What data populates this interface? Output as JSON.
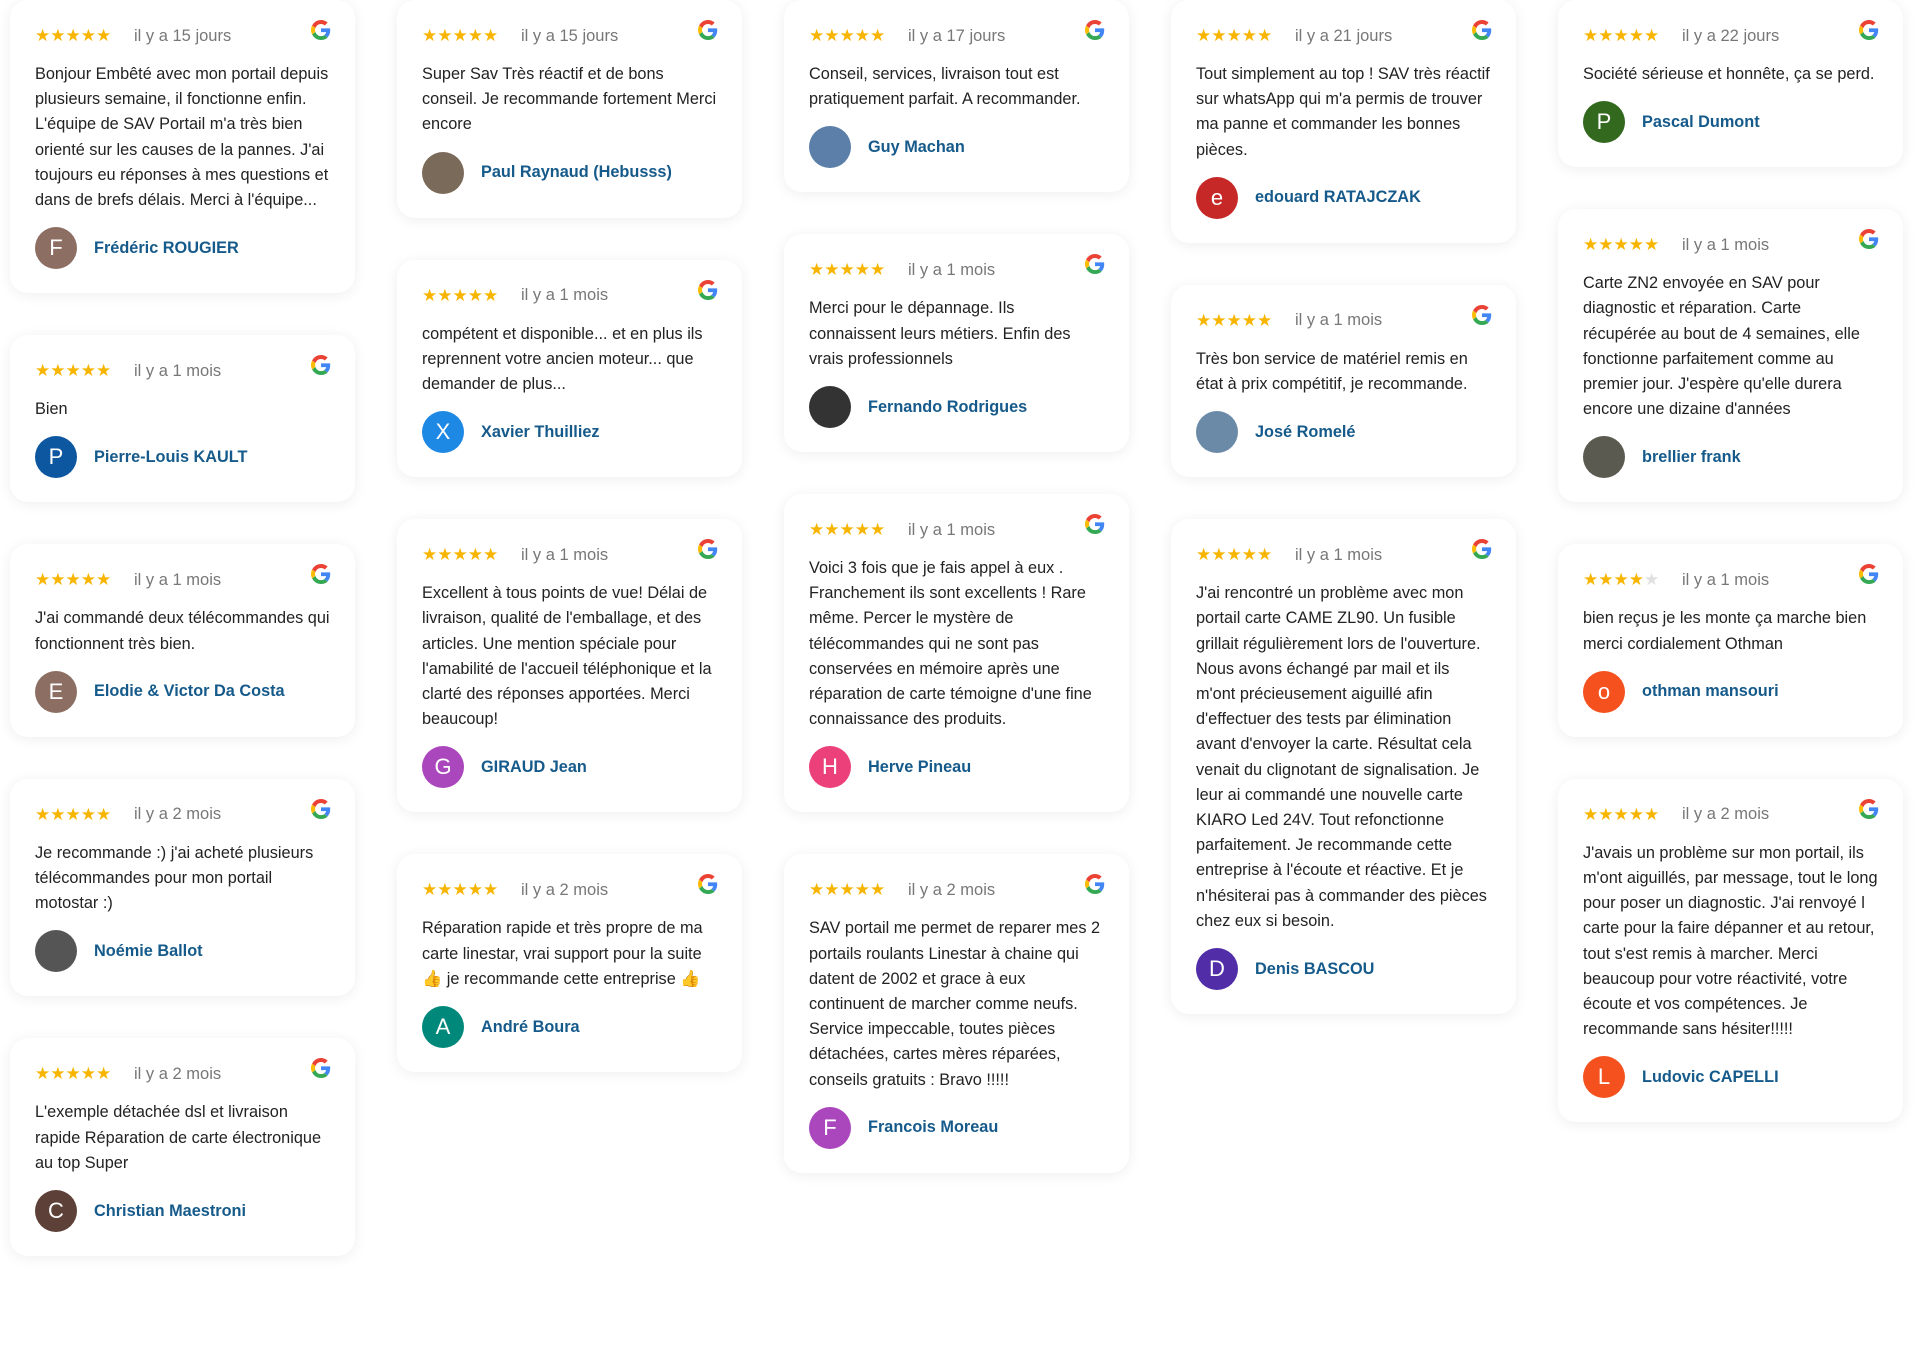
{
  "colors": {
    "star": "#f8b500",
    "name": "#155a8a"
  },
  "columns": [
    [
      {
        "stars": 5,
        "date": "il y a 15 jours",
        "text": "Bonjour Embêté avec mon portail depuis plusieurs semaine, il fonctionne enfin. L'équipe de SAV Portail m'a très bien orienté sur les causes de la pannes. J'ai toujours eu réponses à mes questions et dans de brefs délais. Merci à l'équipe...",
        "name": "Frédéric ROUGIER",
        "initial": "F",
        "color": "#8d6e63"
      },
      {
        "stars": 5,
        "date": "il y a 1 mois",
        "text": "Bien",
        "name": "Pierre-Louis KAULT",
        "initial": "P",
        "color": "#0d57a0"
      },
      {
        "stars": 5,
        "date": "il y a 1 mois",
        "text": "J'ai commandé deux télécommandes qui fonctionnent très bien.",
        "name": "Elodie & Victor Da Costa",
        "initial": "E",
        "color": "#8d6e63"
      },
      {
        "stars": 5,
        "date": "il y a 2 mois",
        "text": "Je recommande :) j'ai acheté plusieurs télécommandes pour mon portail motostar :)",
        "name": "Noémie Ballot",
        "initial": "",
        "color": "#555"
      },
      {
        "stars": 5,
        "date": "il y a 2 mois",
        "text": "L'exemple détachée dsl et livraison rapide Réparation de carte électronique au top Super",
        "name": "Christian Maestroni",
        "initial": "C",
        "color": "#5d4037"
      }
    ],
    [
      {
        "stars": 5,
        "date": "il y a 15 jours",
        "text": "Super Sav Très réactif et de bons conseil. Je recommande fortement Merci encore",
        "name": "Paul Raynaud (Hebusss)",
        "initial": "",
        "color": "#7a6a5a"
      },
      {
        "stars": 5,
        "date": "il y a 1 mois",
        "text": "compétent et disponible... et en plus ils reprennent votre ancien moteur... que demander de plus...",
        "name": "Xavier Thuilliez",
        "initial": "X",
        "color": "#1e88e5"
      },
      {
        "stars": 5,
        "date": "il y a 1 mois",
        "text": "Excellent à tous points de vue! Délai de livraison, qualité de l'emballage, et des articles. Une mention spéciale pour l'amabilité de l'accueil téléphonique et la clarté des réponses apportées. Merci beaucoup!",
        "name": "GIRAUD Jean",
        "initial": "G",
        "color": "#ab47bc"
      },
      {
        "stars": 5,
        "date": "il y a 2 mois",
        "text": "Réparation rapide et très propre de ma carte linestar, vrai support pour la suite 👍 je recommande cette entreprise 👍",
        "name": "André Boura",
        "initial": "A",
        "color": "#00897b"
      }
    ],
    [
      {
        "stars": 5,
        "date": "il y a 17 jours",
        "text": "Conseil, services, livraison tout est pratiquement parfait. A recommander.",
        "name": "Guy Machan",
        "initial": "",
        "color": "#5b7fa8"
      },
      {
        "stars": 5,
        "date": "il y a 1 mois",
        "text": "Merci pour le dépannage. Ils connaissent leurs métiers. Enfin des vrais professionnels",
        "name": "Fernando Rodrigues",
        "initial": "",
        "color": "#333"
      },
      {
        "stars": 5,
        "date": "il y a 1 mois",
        "text": "Voici 3 fois que je fais appel à eux . Franchement ils sont excellents ! Rare même. Percer le mystère de télécommandes qui ne sont pas conservées en mémoire après une réparation de carte témoigne d'une fine connaissance des produits.",
        "name": "Herve Pineau",
        "initial": "H",
        "color": "#ec407a"
      },
      {
        "stars": 5,
        "date": "il y a 2 mois",
        "text": "SAV portail me permet de reparer mes 2 portails roulants Linestar à chaine qui datent de 2002 et grace à eux continuent de marcher comme neufs. Service impeccable, toutes pièces détachées, cartes mères réparées, conseils gratuits : Bravo !!!!!",
        "name": "Francois Moreau",
        "initial": "F",
        "color": "#ab47bc"
      }
    ],
    [
      {
        "stars": 5,
        "date": "il y a 21 jours",
        "text": "Tout simplement au top ! SAV très réactif sur whatsApp qui m'a permis de trouver ma panne et commander les bonnes pièces.",
        "name": "edouard RATAJCZAK",
        "initial": "e",
        "color": "#c62828"
      },
      {
        "stars": 5,
        "date": "il y a 1 mois",
        "text": "Très bon service de matériel remis en état à prix compétitif, je recommande.",
        "name": "José Romelé",
        "initial": "",
        "color": "#6b8aa8"
      },
      {
        "stars": 5,
        "date": "il y a 1 mois",
        "text": "J'ai rencontré un problème avec mon portail carte CAME ZL90. Un fusible grillait régulièrement lors de l'ouverture. Nous avons échangé par mail et ils m'ont précieusement aiguillé afin d'effectuer des tests par élimination avant d'envoyer la carte. Résultat cela venait du clignotant de signalisation. Je leur ai commandé une nouvelle carte KIARO Led 24V. Tout refonctionne parfaitement. Je recommande cette entreprise à l'écoute et réactive. Et je n'hésiterai pas à commander des pièces chez eux si besoin.",
        "name": "Denis BASCOU",
        "initial": "D",
        "color": "#512da8"
      }
    ],
    [
      {
        "stars": 5,
        "date": "il y a 22 jours",
        "text": "Société sérieuse et honnête, ça se perd.",
        "name": "Pascal Dumont",
        "initial": "P",
        "color": "#33691e"
      },
      {
        "stars": 5,
        "date": "il y a 1 mois",
        "text": "Carte ZN2 envoyée en SAV pour diagnostic et réparation. Carte récupérée au bout de 4 semaines, elle fonctionne parfaitement comme au premier jour. J'espère qu'elle durera encore une dizaine d'années",
        "name": "brellier frank",
        "initial": "",
        "color": "#5a5a50"
      },
      {
        "stars": 4,
        "date": "il y a 1 mois",
        "text": "bien reçus je les monte ça marche bien merci cordialement Othman",
        "name": "othman mansouri",
        "initial": "o",
        "color": "#f4511e"
      },
      {
        "stars": 5,
        "date": "il y a 2 mois",
        "text": "J'avais un problème sur mon portail, ils m'ont aiguillés, par message, tout le long pour poser un diagnostic. J'ai renvoyé l carte pour la faire dépanner et au retour, tout s'est remis à marcher. Merci beaucoup pour votre réactivité, votre écoute et vos compétences. Je recommande sans hésiter!!!!!",
        "name": "Ludovic CAPELLI",
        "initial": "L",
        "color": "#f4511e"
      }
    ]
  ]
}
